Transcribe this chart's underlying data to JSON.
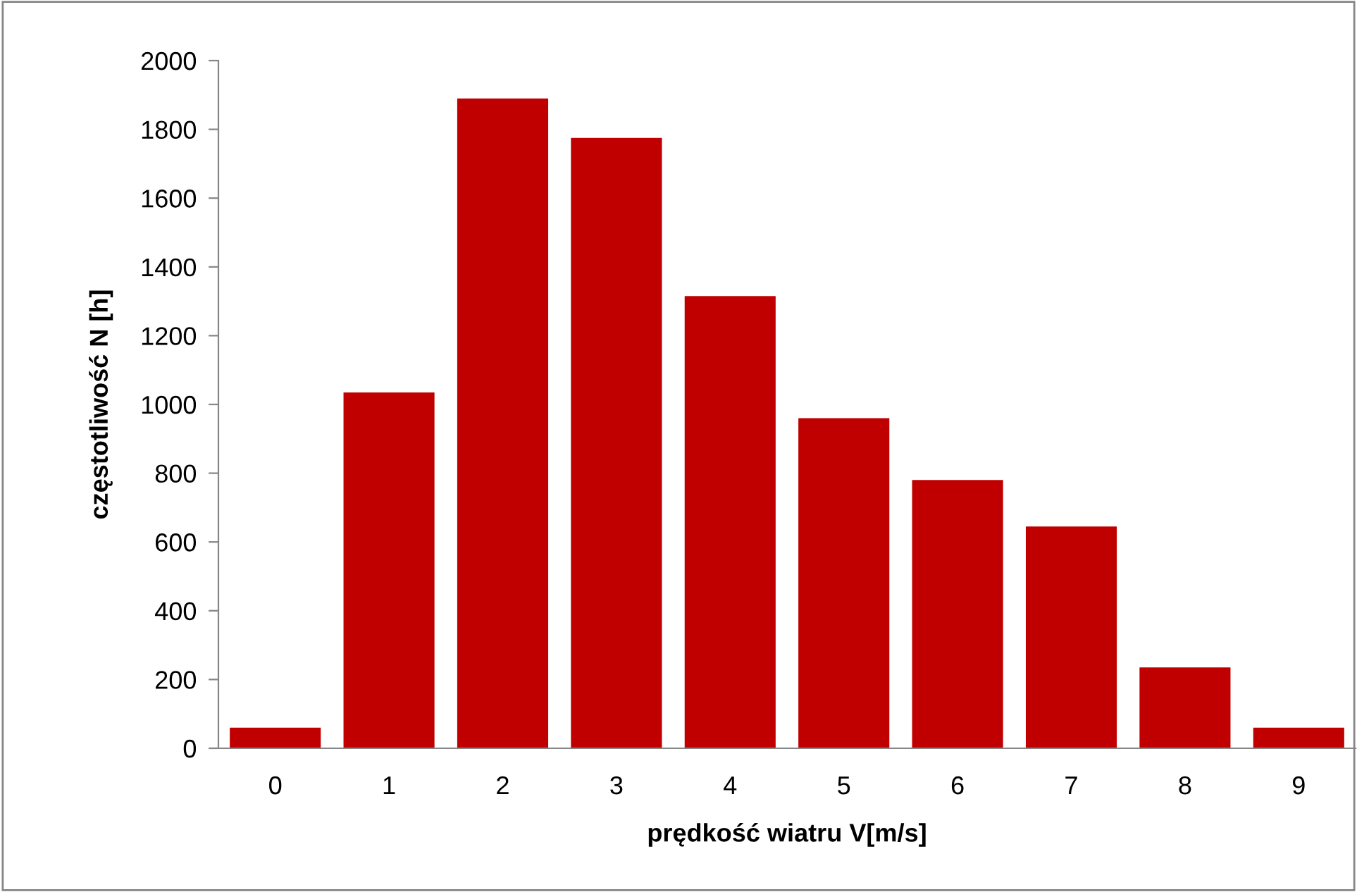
{
  "chart_data": {
    "type": "bar",
    "xlabel": "prędkość wiatru V[m/s]",
    "ylabel": "częstotliwość N [h]",
    "categories": [
      "0",
      "1",
      "2",
      "3",
      "4",
      "5",
      "6",
      "7",
      "8",
      "9"
    ],
    "values": [
      60,
      1035,
      1890,
      1775,
      1315,
      960,
      780,
      645,
      235,
      60
    ],
    "color": "#c00000",
    "ylim": [
      0,
      2000
    ],
    "yticks": [
      0,
      200,
      400,
      600,
      800,
      1000,
      1200,
      1400,
      1600,
      1800,
      2000
    ],
    "grid": false,
    "legend": false
  }
}
